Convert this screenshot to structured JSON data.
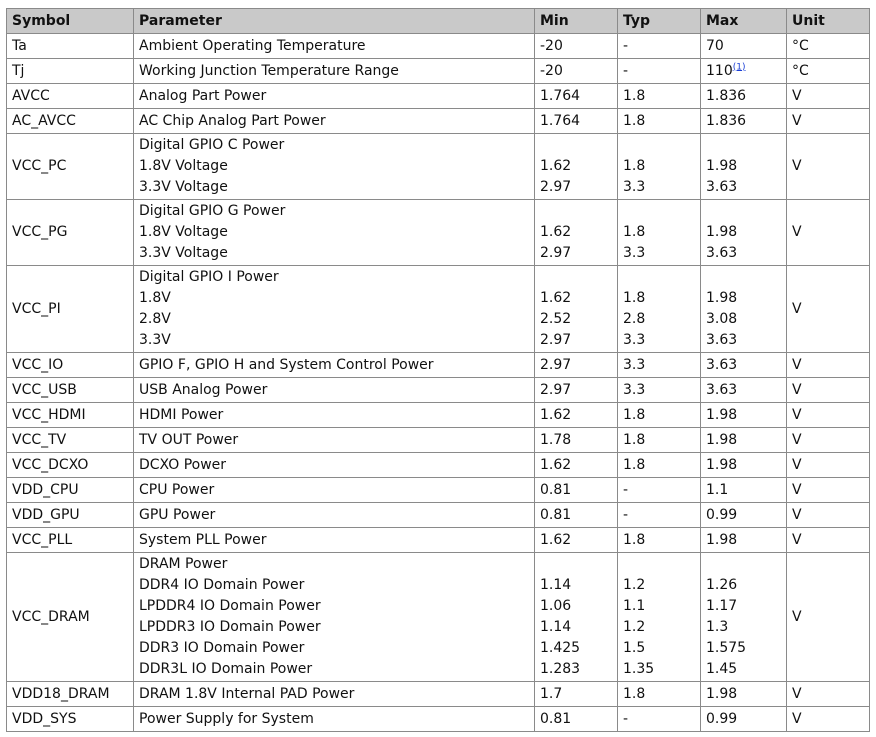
{
  "headers": [
    "Symbol",
    "Parameter",
    "Min",
    "Typ",
    "Max",
    "Unit"
  ],
  "rows": [
    {
      "symbol": "Ta",
      "parameter": [
        "Ambient Operating Temperature"
      ],
      "min": [
        "-20"
      ],
      "typ": [
        "-"
      ],
      "max": [
        "70"
      ],
      "unit": "°C"
    },
    {
      "symbol": "Tj",
      "parameter": [
        "Working Junction Temperature Range"
      ],
      "min": [
        "-20"
      ],
      "typ": [
        "-"
      ],
      "max": [
        "110"
      ],
      "max_note": "(1)",
      "unit": "°C"
    },
    {
      "symbol": "AVCC",
      "parameter": [
        "Analog Part Power"
      ],
      "min": [
        "1.764"
      ],
      "typ": [
        "1.8"
      ],
      "max": [
        "1.836"
      ],
      "unit": "V"
    },
    {
      "symbol": "AC_AVCC",
      "parameter": [
        "AC Chip Analog Part Power"
      ],
      "min": [
        "1.764"
      ],
      "typ": [
        "1.8"
      ],
      "max": [
        "1.836"
      ],
      "unit": "V"
    },
    {
      "symbol": "VCC_PC",
      "parameter": [
        "Digital GPIO C Power",
        "1.8V Voltage",
        "3.3V Voltage"
      ],
      "min": [
        "",
        "1.62",
        "2.97"
      ],
      "typ": [
        "",
        "1.8",
        "3.3"
      ],
      "max": [
        "",
        "1.98",
        "3.63"
      ],
      "unit": "V"
    },
    {
      "symbol": "VCC_PG",
      "parameter": [
        "Digital GPIO G Power",
        "1.8V Voltage",
        "3.3V Voltage"
      ],
      "min": [
        "",
        "1.62",
        "2.97"
      ],
      "typ": [
        "",
        "1.8",
        "3.3"
      ],
      "max": [
        "",
        "1.98",
        "3.63"
      ],
      "unit": "V"
    },
    {
      "symbol": "VCC_PI",
      "parameter": [
        "Digital GPIO I Power",
        "1.8V",
        "2.8V",
        "3.3V"
      ],
      "min": [
        "",
        "1.62",
        "2.52",
        "2.97"
      ],
      "typ": [
        "",
        "1.8",
        "2.8",
        "3.3"
      ],
      "max": [
        "",
        "1.98",
        "3.08",
        "3.63"
      ],
      "unit": "V"
    },
    {
      "symbol": "VCC_IO",
      "parameter": [
        "GPIO F, GPIO H and System Control Power"
      ],
      "min": [
        "2.97"
      ],
      "typ": [
        "3.3"
      ],
      "max": [
        "3.63"
      ],
      "unit": "V"
    },
    {
      "symbol": "VCC_USB",
      "parameter": [
        "USB Analog Power"
      ],
      "min": [
        "2.97"
      ],
      "typ": [
        "3.3"
      ],
      "max": [
        "3.63"
      ],
      "unit": "V"
    },
    {
      "symbol": "VCC_HDMI",
      "parameter": [
        "HDMI Power"
      ],
      "min": [
        "1.62"
      ],
      "typ": [
        "1.8"
      ],
      "max": [
        "1.98"
      ],
      "unit": "V"
    },
    {
      "symbol": "VCC_TV",
      "parameter": [
        "TV OUT Power"
      ],
      "min": [
        "1.78"
      ],
      "typ": [
        "1.8"
      ],
      "max": [
        "1.98"
      ],
      "unit": "V"
    },
    {
      "symbol": "VCC_DCXO",
      "parameter": [
        "DCXO Power"
      ],
      "min": [
        "1.62"
      ],
      "typ": [
        "1.8"
      ],
      "max": [
        "1.98"
      ],
      "unit": "V"
    },
    {
      "symbol": "VDD_CPU",
      "parameter": [
        "CPU Power"
      ],
      "min": [
        "0.81"
      ],
      "typ": [
        "-"
      ],
      "max": [
        "1.1"
      ],
      "unit": "V"
    },
    {
      "symbol": "VDD_GPU",
      "parameter": [
        "GPU Power"
      ],
      "min": [
        "0.81"
      ],
      "typ": [
        "-"
      ],
      "max": [
        "0.99"
      ],
      "unit": "V"
    },
    {
      "symbol": "VCC_PLL",
      "parameter": [
        "System PLL Power"
      ],
      "min": [
        "1.62"
      ],
      "typ": [
        "1.8"
      ],
      "max": [
        "1.98"
      ],
      "unit": "V"
    },
    {
      "symbol": "VCC_DRAM",
      "parameter": [
        "DRAM Power",
        "DDR4 IO Domain Power",
        "LPDDR4 IO Domain Power",
        "LPDDR3 IO Domain Power",
        "DDR3 IO Domain Power",
        "DDR3L IO Domain Power"
      ],
      "min": [
        "",
        "1.14",
        "1.06",
        "1.14",
        "1.425",
        "1.283"
      ],
      "typ": [
        "",
        "1.2",
        "1.1",
        "1.2",
        "1.5",
        "1.35"
      ],
      "max": [
        "",
        "1.26",
        "1.17",
        "1.3",
        "1.575",
        "1.45"
      ],
      "unit": "V"
    },
    {
      "symbol": "VDD18_DRAM",
      "parameter": [
        "DRAM 1.8V Internal PAD Power"
      ],
      "min": [
        "1.7"
      ],
      "typ": [
        "1.8"
      ],
      "max": [
        "1.98"
      ],
      "unit": "V"
    },
    {
      "symbol": "VDD_SYS",
      "parameter": [
        "Power Supply for System"
      ],
      "min": [
        "0.81"
      ],
      "typ": [
        "-"
      ],
      "max": [
        "0.99"
      ],
      "unit": "V"
    }
  ]
}
